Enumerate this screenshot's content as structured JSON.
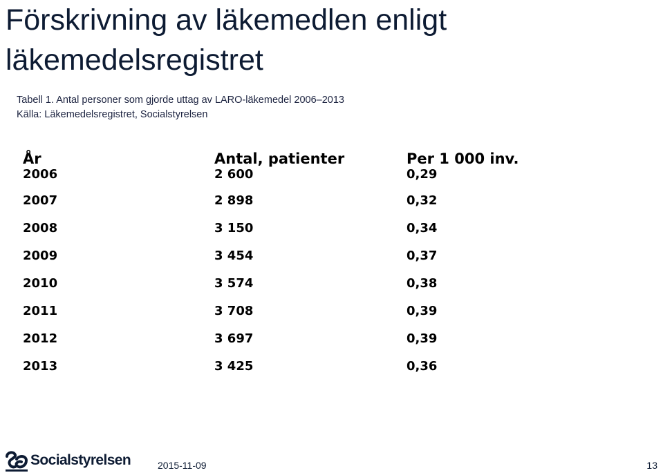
{
  "slide": {
    "title": "Förskrivning av läkemedlen enligt läkemedelsregistret",
    "table_caption": "Tabell 1. Antal personer som gjorde uttag av LARO-läkemedel 2006–2013",
    "source": "Källa: Läkemedelsregistret, Socialstyrelsen"
  },
  "table": {
    "headers": [
      "År",
      "Antal, patienter",
      "Per 1 000 inv."
    ],
    "rows": [
      [
        "2006",
        "2 600",
        "0,29"
      ],
      [
        "2007",
        "2 898",
        "0,32"
      ],
      [
        "2008",
        "3 150",
        "0,34"
      ],
      [
        "2009",
        "3 454",
        "0,37"
      ],
      [
        "2010",
        "3 574",
        "0,38"
      ],
      [
        "2011",
        "3 708",
        "0,39"
      ],
      [
        "2012",
        "3 697",
        "0,39"
      ],
      [
        "2013",
        "3 425",
        "0,36"
      ]
    ]
  },
  "footer": {
    "logo_text": "Socialstyrelsen",
    "date": "2015-11-09",
    "page_number": "13"
  },
  "colors": {
    "title": "#0d1b33",
    "text": "#000000"
  }
}
